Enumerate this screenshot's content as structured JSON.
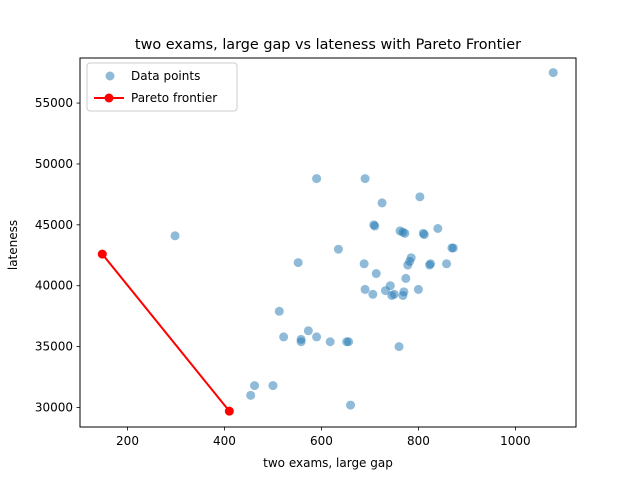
{
  "chart_data": {
    "type": "scatter",
    "title": "two exams, large gap vs lateness with Pareto Frontier",
    "xlabel": "two exams, large gap",
    "ylabel": "lateness",
    "xlim": [
      102,
      1125
    ],
    "ylim": [
      28400,
      58700
    ],
    "xticks": [
      200,
      400,
      600,
      800,
      1000
    ],
    "yticks": [
      30000,
      35000,
      40000,
      45000,
      50000,
      55000
    ],
    "grid": false,
    "legend_position": "upper-left",
    "series": [
      {
        "name": "Data points",
        "kind": "scatter",
        "color": "#1f77b4",
        "opacity": 0.5,
        "points": [
          [
            1078,
            57500
          ],
          [
            590,
            48800
          ],
          [
            690,
            48800
          ],
          [
            725,
            46800
          ],
          [
            803,
            47300
          ],
          [
            710,
            44900
          ],
          [
            708,
            45000
          ],
          [
            762,
            44500
          ],
          [
            768,
            44400
          ],
          [
            772,
            44300
          ],
          [
            810,
            44300
          ],
          [
            812,
            44200
          ],
          [
            840,
            44700
          ],
          [
            869,
            43100
          ],
          [
            872,
            43100
          ],
          [
            298,
            44100
          ],
          [
            635,
            43000
          ],
          [
            552,
            41900
          ],
          [
            688,
            41800
          ],
          [
            785,
            42300
          ],
          [
            782,
            42000
          ],
          [
            778,
            41700
          ],
          [
            825,
            41800
          ],
          [
            823,
            41700
          ],
          [
            858,
            41800
          ],
          [
            713,
            41000
          ],
          [
            774,
            40600
          ],
          [
            690,
            39700
          ],
          [
            732,
            39600
          ],
          [
            742,
            40000
          ],
          [
            745,
            39200
          ],
          [
            750,
            39300
          ],
          [
            706,
            39300
          ],
          [
            770,
            39500
          ],
          [
            768,
            39200
          ],
          [
            800,
            39700
          ],
          [
            513,
            37900
          ],
          [
            522,
            35800
          ],
          [
            558,
            35600
          ],
          [
            558,
            35400
          ],
          [
            573,
            36300
          ],
          [
            590,
            35800
          ],
          [
            618,
            35400
          ],
          [
            652,
            35400
          ],
          [
            656,
            35400
          ],
          [
            760,
            35000
          ],
          [
            660,
            30200
          ],
          [
            454,
            31000
          ],
          [
            462,
            31800
          ],
          [
            500,
            31800
          ]
        ]
      },
      {
        "name": "Pareto frontier",
        "kind": "line",
        "color": "#ff0000",
        "points": [
          [
            148,
            42600
          ],
          [
            410,
            29700
          ]
        ]
      }
    ]
  }
}
